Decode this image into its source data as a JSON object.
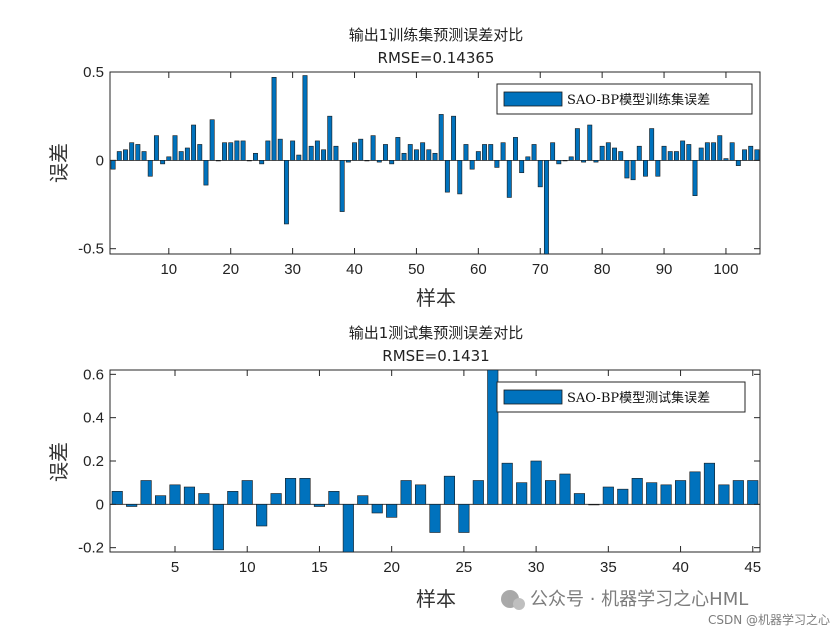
{
  "chart_data": [
    {
      "type": "bar",
      "title": "输出1训练集预测误差对比",
      "subtitle": "RMSE=0.14365",
      "xlabel": "样本",
      "ylabel": "误差",
      "xlim": [
        0.5,
        105.5
      ],
      "ylim": [
        -0.53,
        0.5
      ],
      "yticks": [
        -0.5,
        0,
        0.5
      ],
      "ytick_labels": [
        "-0.5",
        "0",
        "0.5"
      ],
      "xticks": [
        10,
        20,
        30,
        40,
        50,
        60,
        70,
        80,
        90,
        100
      ],
      "xtick_labels": [
        "10",
        "20",
        "30",
        "40",
        "50",
        "60",
        "70",
        "80",
        "90",
        "100"
      ],
      "legend": {
        "placement": "top-right",
        "entries": [
          "SAO-BP模型训练集误差"
        ]
      },
      "color": "#0072BD",
      "x": [
        1,
        2,
        3,
        4,
        5,
        6,
        7,
        8,
        9,
        10,
        11,
        12,
        13,
        14,
        15,
        16,
        17,
        18,
        19,
        20,
        21,
        22,
        23,
        24,
        25,
        26,
        27,
        28,
        29,
        30,
        31,
        32,
        33,
        34,
        35,
        36,
        37,
        38,
        39,
        40,
        41,
        42,
        43,
        44,
        45,
        46,
        47,
        48,
        49,
        50,
        51,
        52,
        53,
        54,
        55,
        56,
        57,
        58,
        59,
        60,
        61,
        62,
        63,
        64,
        65,
        66,
        67,
        68,
        69,
        70,
        71,
        72,
        73,
        74,
        75,
        76,
        77,
        78,
        79,
        80,
        81,
        82,
        83,
        84,
        85,
        86,
        87,
        88,
        89,
        90,
        91,
        92,
        93,
        94,
        95,
        96,
        97,
        98,
        99,
        100,
        101,
        102,
        103,
        104,
        105
      ],
      "series": [
        {
          "name": "SAO-BP模型训练集误差",
          "values": [
            -0.05,
            0.05,
            0.06,
            0.1,
            0.09,
            0.05,
            -0.09,
            0.14,
            -0.02,
            0.02,
            0.14,
            0.05,
            0.07,
            0.2,
            0.09,
            -0.14,
            0.23,
            0,
            0.1,
            0.1,
            0.11,
            0.11,
            0,
            0.04,
            -0.02,
            0.11,
            0.47,
            0.12,
            -0.36,
            0.11,
            0.03,
            0.48,
            0.08,
            0.11,
            0.06,
            0.25,
            0.08,
            -0.29,
            -0.01,
            0.1,
            0.12,
            0,
            0.14,
            -0.01,
            0.09,
            -0.02,
            0.13,
            0.04,
            0.09,
            0.06,
            0.1,
            0.06,
            0.04,
            0.26,
            -0.18,
            0.25,
            -0.19,
            0.09,
            -0.05,
            0.05,
            0.09,
            0.09,
            -0.04,
            0.1,
            -0.21,
            0.13,
            -0.07,
            0.02,
            0.09,
            -0.15,
            -0.53,
            0.1,
            -0.02,
            0,
            0.02,
            0.18,
            -0.01,
            0.2,
            -0.01,
            0.08,
            0.1,
            0.07,
            0.05,
            -0.1,
            -0.11,
            0.08,
            -0.09,
            0.18,
            -0.09,
            0.08,
            0.05,
            0.05,
            0.11,
            0.09,
            -0.2,
            0.07,
            0.1,
            0.1,
            0.14,
            0.01,
            0.1,
            -0.03,
            0.06,
            0.08,
            0.06
          ]
        }
      ]
    },
    {
      "type": "bar",
      "title": "输出1测试集预测误差对比",
      "subtitle": "RMSE=0.1431",
      "xlabel": "样本",
      "ylabel": "误差",
      "xlim": [
        0.5,
        45.5
      ],
      "ylim": [
        -0.22,
        0.62
      ],
      "yticks": [
        -0.2,
        0,
        0.2,
        0.4,
        0.6
      ],
      "ytick_labels": [
        "-0.2",
        "0",
        "0.2",
        "0.4",
        "0.6"
      ],
      "xticks": [
        5,
        10,
        15,
        20,
        25,
        30,
        35,
        40,
        45
      ],
      "xtick_labels": [
        "5",
        "10",
        "15",
        "20",
        "25",
        "30",
        "35",
        "40",
        "45"
      ],
      "legend": {
        "placement": "top-right",
        "entries": [
          "SAO-BP模型测试集误差"
        ]
      },
      "color": "#0072BD",
      "x": [
        1,
        2,
        3,
        4,
        5,
        6,
        7,
        8,
        9,
        10,
        11,
        12,
        13,
        14,
        15,
        16,
        17,
        18,
        19,
        20,
        21,
        22,
        23,
        24,
        25,
        26,
        27,
        28,
        29,
        30,
        31,
        32,
        33,
        34,
        35,
        36,
        37,
        38,
        39,
        40,
        41,
        42,
        43,
        44,
        45
      ],
      "series": [
        {
          "name": "SAO-BP模型测试集误差",
          "values": [
            0.06,
            -0.01,
            0.11,
            0.04,
            0.09,
            0.08,
            0.05,
            -0.21,
            0.06,
            0.11,
            -0.1,
            0.05,
            0.12,
            0.12,
            -0.01,
            0.06,
            -0.22,
            0.04,
            -0.04,
            -0.06,
            0.11,
            0.09,
            -0.13,
            0.13,
            -0.13,
            0.11,
            0.62,
            0.19,
            0.1,
            0.2,
            0.11,
            0.14,
            0.05,
            0,
            0.08,
            0.07,
            0.12,
            0.1,
            0.09,
            0.11,
            0.15,
            0.19,
            0.09,
            0.11,
            0.11
          ]
        }
      ]
    }
  ],
  "watermark": {
    "main": "公众号 · 机器学习之心HML",
    "sub": "CSDN @机器学习之心"
  }
}
